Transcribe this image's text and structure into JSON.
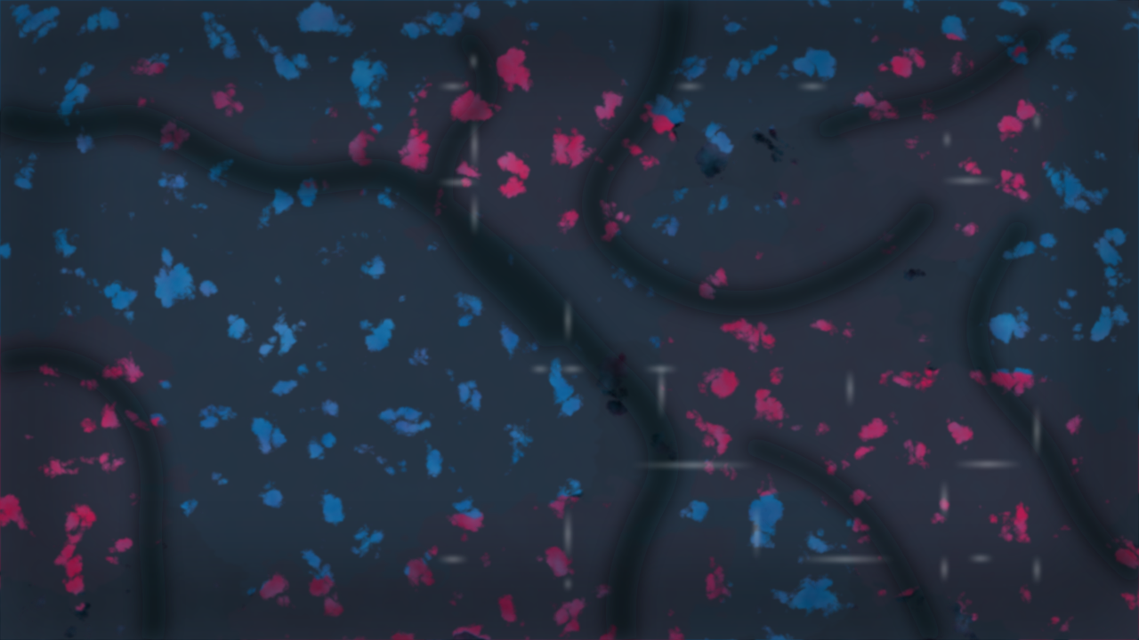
{
  "scene": {
    "kind": "abstract-noise-texture",
    "palette": {
      "background": "#05111b",
      "dark_veins": "#090b12",
      "blue_primary": "#0b5d95",
      "blue_light": "#3a8fc6",
      "blue_dark": "#07395f",
      "red_primary": "#c71d56",
      "red_light": "#ff4f84",
      "red_dark": "#5b1028",
      "sparkle": "#d8eef7"
    }
  }
}
